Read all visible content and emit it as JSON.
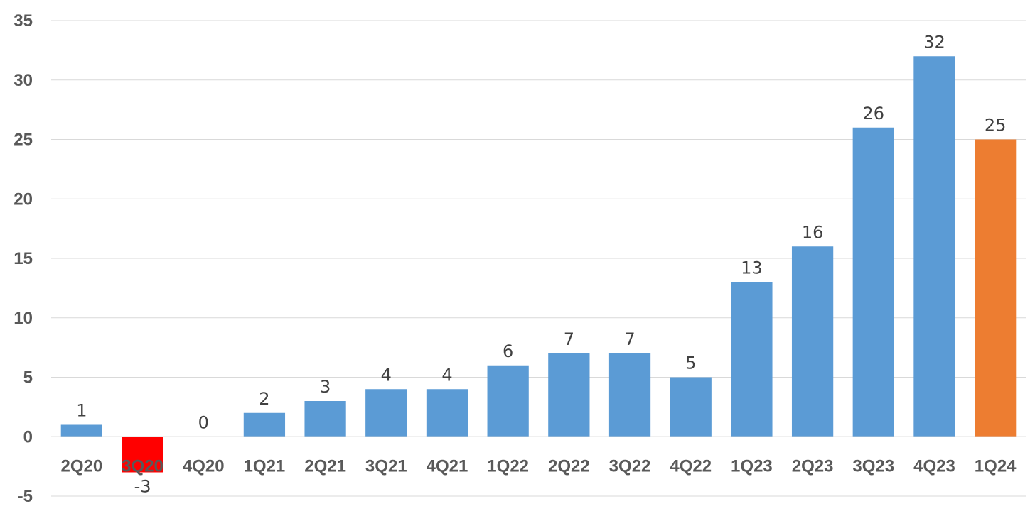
{
  "chart_data": {
    "type": "bar",
    "title": "",
    "xlabel": "",
    "ylabel": "",
    "categories": [
      "2Q20",
      "3Q20",
      "4Q20",
      "1Q21",
      "2Q21",
      "3Q21",
      "4Q21",
      "1Q22",
      "2Q22",
      "3Q22",
      "4Q22",
      "1Q23",
      "2Q23",
      "3Q23",
      "4Q23",
      "1Q24"
    ],
    "values": [
      1,
      -3,
      0,
      2,
      3,
      4,
      4,
      6,
      7,
      7,
      5,
      13,
      16,
      26,
      32,
      25
    ],
    "bar_colors": [
      "#5B9BD5",
      "#FF0000",
      "#5B9BD5",
      "#5B9BD5",
      "#5B9BD5",
      "#5B9BD5",
      "#5B9BD5",
      "#5B9BD5",
      "#5B9BD5",
      "#5B9BD5",
      "#5B9BD5",
      "#5B9BD5",
      "#5B9BD5",
      "#5B9BD5",
      "#5B9BD5",
      "#ED7D31"
    ],
    "ylim": [
      -5,
      35
    ],
    "yticks": [
      -5,
      0,
      5,
      10,
      15,
      20,
      25,
      30,
      35
    ],
    "data_labels": true,
    "grid": true,
    "legend": "none"
  }
}
